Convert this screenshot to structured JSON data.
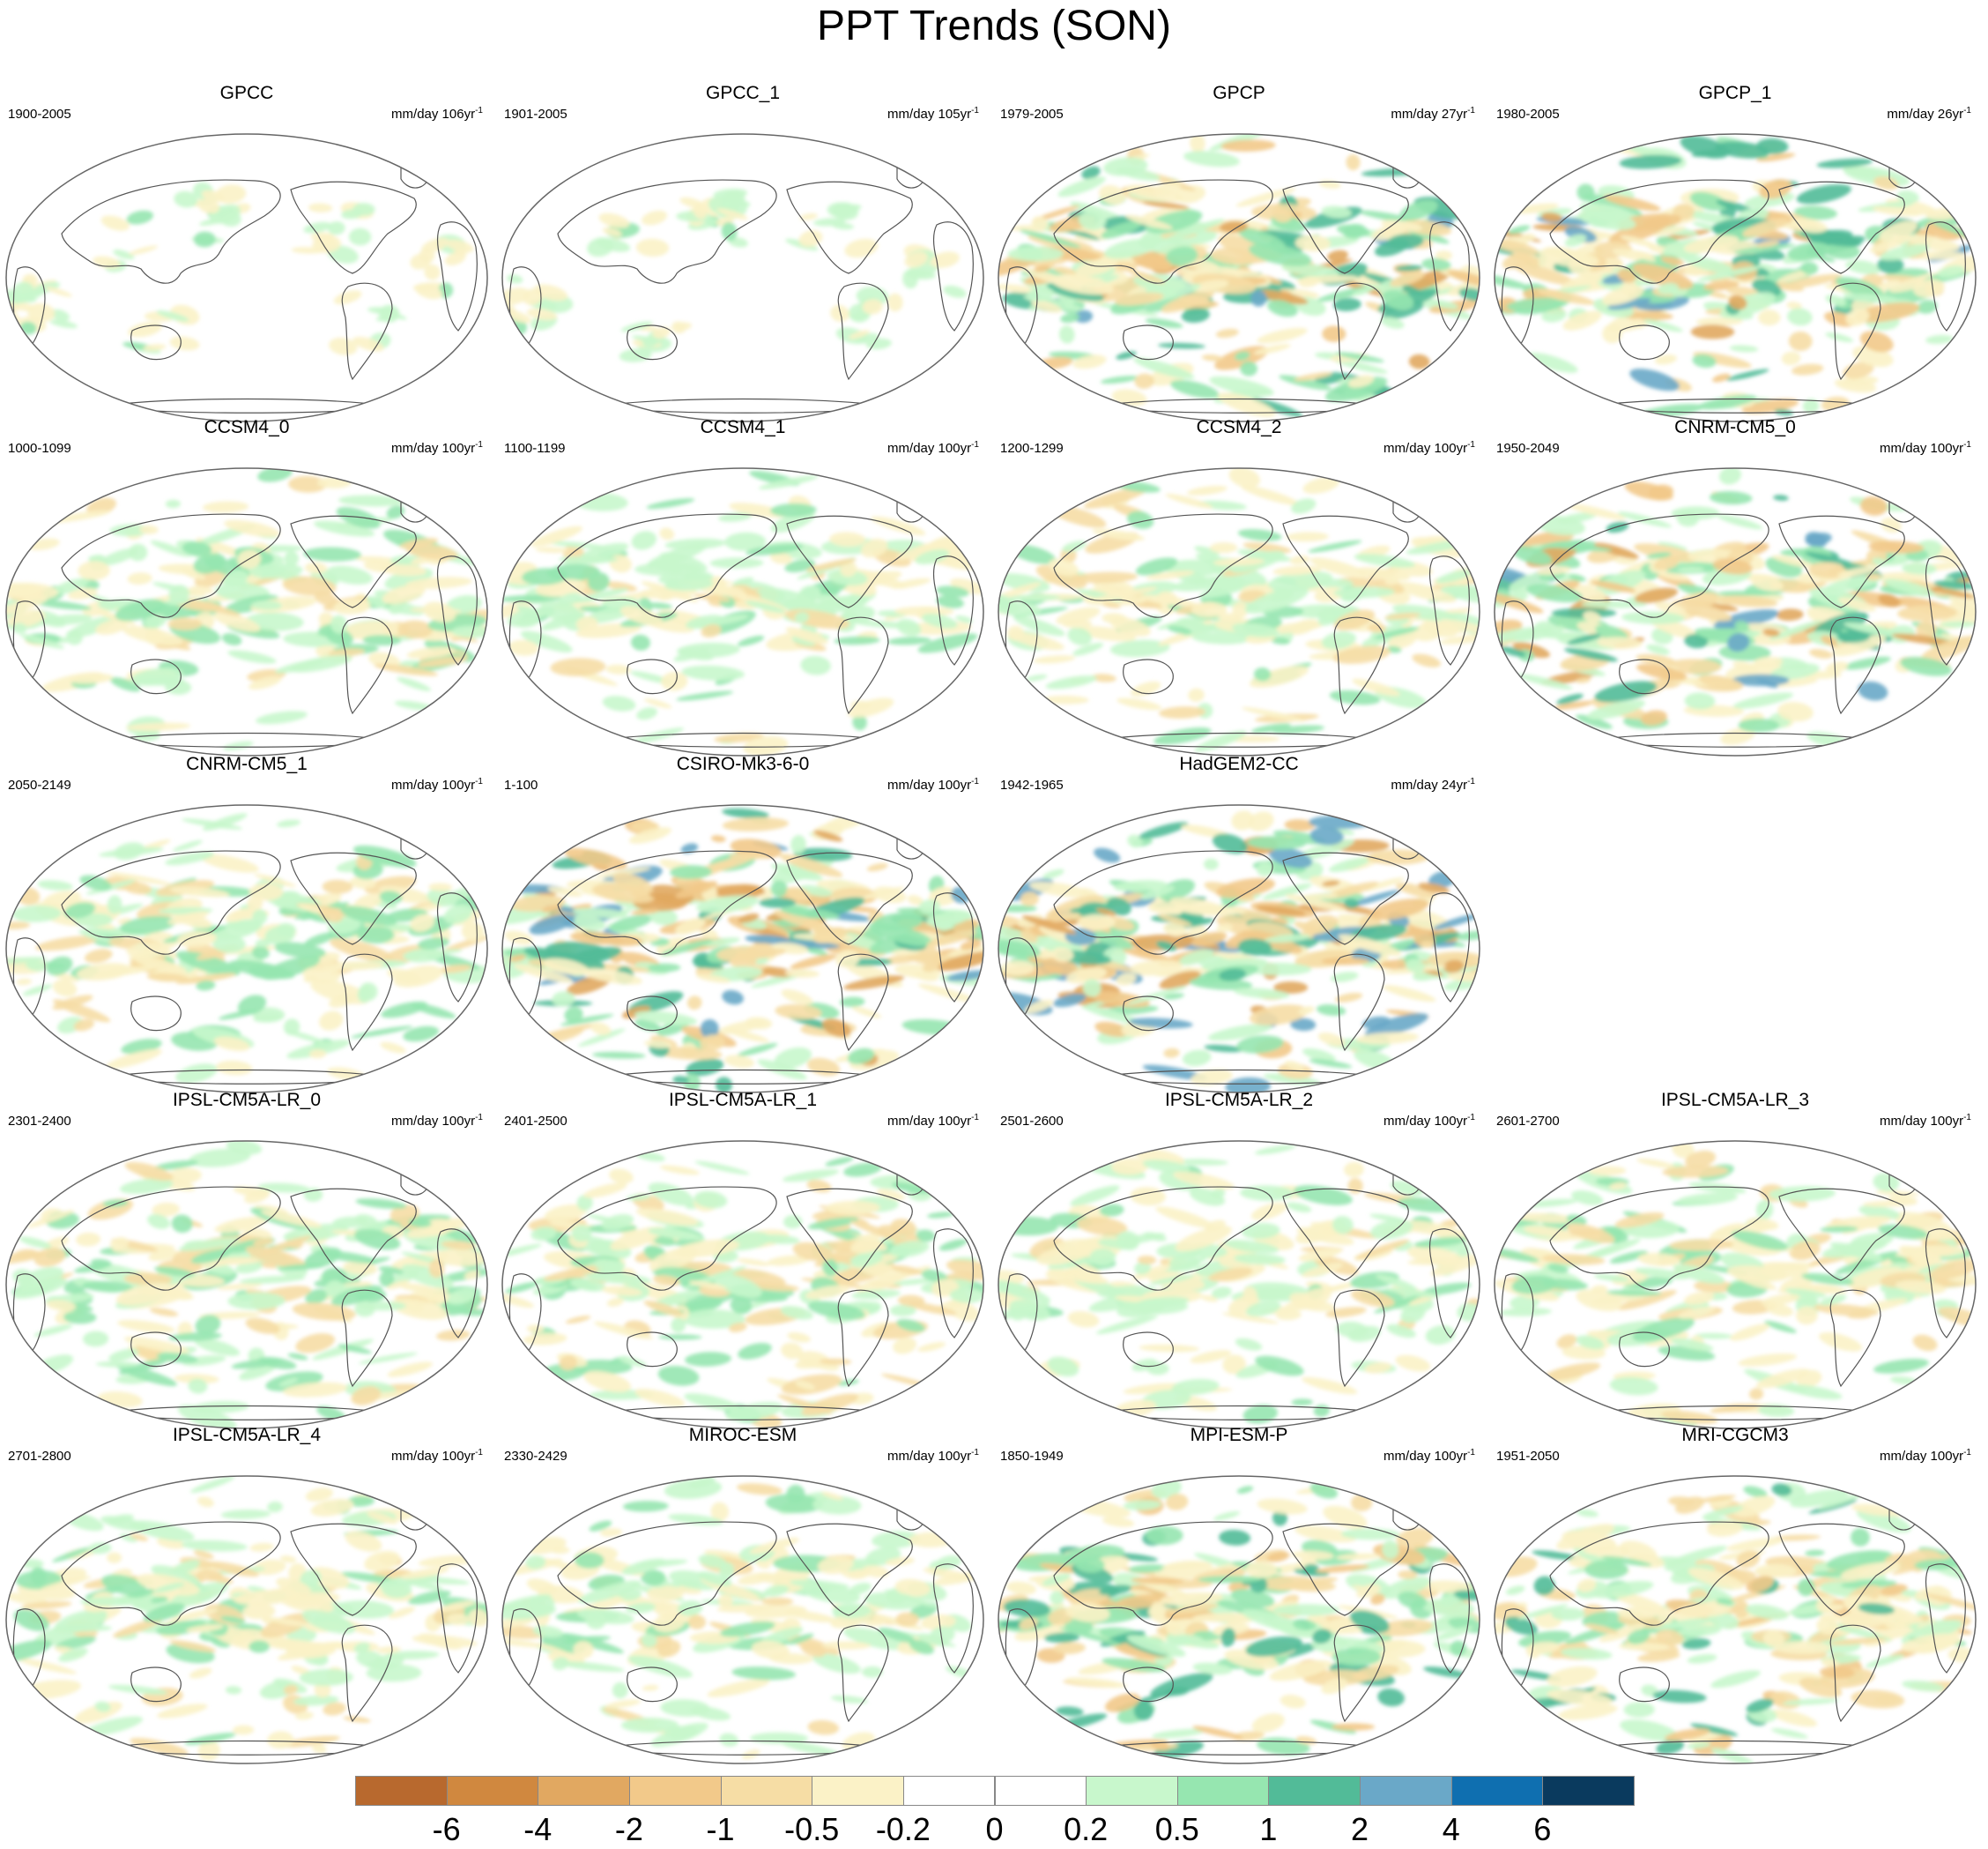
{
  "title": "PPT Trends (SON)",
  "units_text": "mm/day",
  "units_exp": "-1",
  "colors": {
    "land_outline": "#555555",
    "frame": "#666666"
  },
  "colorbar": {
    "labels": [
      "-6",
      "-4",
      "-2",
      "-1",
      "-0.5",
      "-0.2",
      "0",
      "0.2",
      "0.5",
      "1",
      "2",
      "4",
      "6"
    ],
    "colors": [
      "#b8692e",
      "#d0883f",
      "#e1a861",
      "#f2c98a",
      "#f6dda5",
      "#fbf2c7",
      "#ffffff",
      "#ffffff",
      "#c8f7cc",
      "#96e6b0",
      "#52bb98",
      "#6aa8c8",
      "#0f6fb0",
      "#0a3a5e"
    ]
  },
  "chart_data": {
    "type": "heatmap",
    "title": "PPT Trends (SON)",
    "projection": "Robinson (Pacific-centered)",
    "colorbar_levels": [
      -6,
      -4,
      -2,
      -1,
      -0.5,
      -0.2,
      0,
      0.2,
      0.5,
      1,
      2,
      4,
      6
    ],
    "panels": [
      {
        "name": "GPCC",
        "years": "1900-2005",
        "units": "mm/day 106yr",
        "intensity": 0.35,
        "land_only": true,
        "col": 0,
        "row": 0
      },
      {
        "name": "GPCC_1",
        "years": "1901-2005",
        "units": "mm/day 105yr",
        "intensity": 0.35,
        "land_only": true,
        "col": 1,
        "row": 0
      },
      {
        "name": "GPCP",
        "years": "1979-2005",
        "units": "mm/day 27yr",
        "intensity": 0.85,
        "land_only": false,
        "col": 2,
        "row": 0
      },
      {
        "name": "GPCP_1",
        "years": "1980-2005",
        "units": "mm/day 26yr",
        "intensity": 0.85,
        "land_only": false,
        "col": 3,
        "row": 0
      },
      {
        "name": "CCSM4_0",
        "years": "1000-1099",
        "units": "mm/day 100yr",
        "intensity": 0.5,
        "land_only": false,
        "col": 0,
        "row": 1
      },
      {
        "name": "CCSM4_1",
        "years": "1100-1199",
        "units": "mm/day 100yr",
        "intensity": 0.45,
        "land_only": false,
        "col": 1,
        "row": 1
      },
      {
        "name": "CCSM4_2",
        "years": "1200-1299",
        "units": "mm/day 100yr",
        "intensity": 0.5,
        "land_only": false,
        "col": 2,
        "row": 1
      },
      {
        "name": "CNRM-CM5_0",
        "years": "1950-2049",
        "units": "mm/day 100yr",
        "intensity": 0.9,
        "land_only": false,
        "col": 3,
        "row": 1
      },
      {
        "name": "CNRM-CM5_1",
        "years": "2050-2149",
        "units": "mm/day 100yr",
        "intensity": 0.55,
        "land_only": false,
        "col": 0,
        "row": 2
      },
      {
        "name": "CSIRO-Mk3-6-0",
        "years": "1-100",
        "units": "mm/day 100yr",
        "intensity": 0.95,
        "land_only": false,
        "col": 1,
        "row": 2
      },
      {
        "name": "HadGEM2-CC",
        "years": "1942-1965",
        "units": "mm/day 24yr",
        "intensity": 1.0,
        "land_only": false,
        "col": 2,
        "row": 2
      },
      {
        "name": "IPSL-CM5A-LR_0",
        "years": "2301-2400",
        "units": "mm/day 100yr",
        "intensity": 0.6,
        "land_only": false,
        "col": 0,
        "row": 3
      },
      {
        "name": "IPSL-CM5A-LR_1",
        "years": "2401-2500",
        "units": "mm/day 100yr",
        "intensity": 0.6,
        "land_only": false,
        "col": 1,
        "row": 3
      },
      {
        "name": "IPSL-CM5A-LR_2",
        "years": "2501-2600",
        "units": "mm/day 100yr",
        "intensity": 0.45,
        "land_only": false,
        "col": 2,
        "row": 3
      },
      {
        "name": "IPSL-CM5A-LR_3",
        "years": "2601-2700",
        "units": "mm/day 100yr",
        "intensity": 0.55,
        "land_only": false,
        "col": 3,
        "row": 3
      },
      {
        "name": "IPSL-CM5A-LR_4",
        "years": "2701-2800",
        "units": "mm/day 100yr",
        "intensity": 0.5,
        "land_only": false,
        "col": 0,
        "row": 4
      },
      {
        "name": "MIROC-ESM",
        "years": "2330-2429",
        "units": "mm/day 100yr",
        "intensity": 0.45,
        "land_only": false,
        "col": 1,
        "row": 4
      },
      {
        "name": "MPI-ESM-P",
        "years": "1850-1949",
        "units": "mm/day 100yr",
        "intensity": 0.75,
        "land_only": false,
        "col": 2,
        "row": 4
      },
      {
        "name": "MRI-CGCM3",
        "years": "1951-2050",
        "units": "mm/day 100yr",
        "intensity": 0.7,
        "land_only": false,
        "col": 3,
        "row": 4
      }
    ]
  }
}
